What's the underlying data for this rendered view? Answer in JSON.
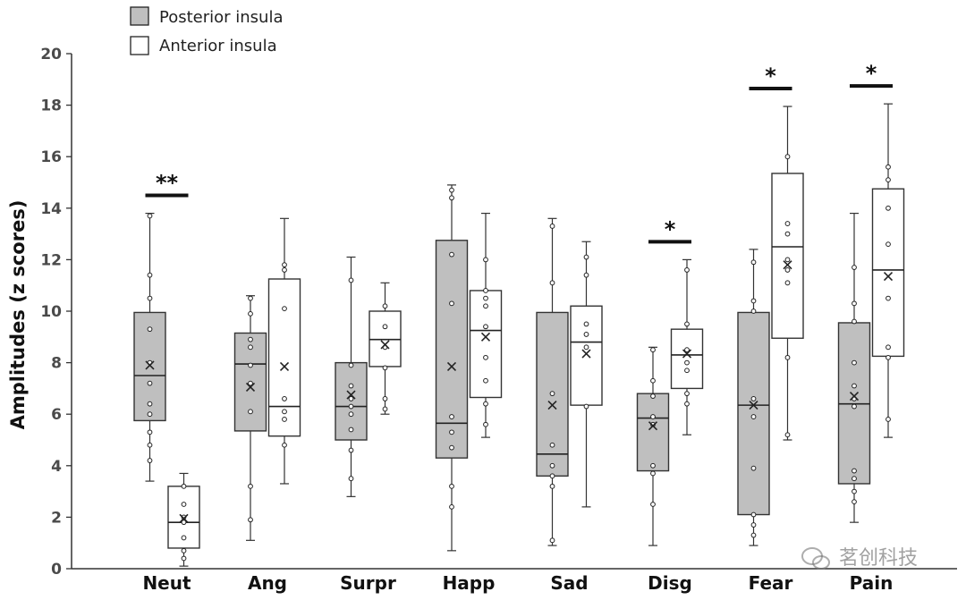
{
  "chart_data": {
    "type": "box",
    "ylabel": "Amplitudes (z scores)",
    "ylim": [
      0,
      20
    ],
    "yticks": [
      "0",
      "2",
      "4",
      "6",
      "8",
      "10",
      "12",
      "14",
      "16",
      "18",
      "20"
    ],
    "categories": [
      "Neut",
      "Ang",
      "Surpr",
      "Happ",
      "Sad",
      "Disg",
      "Fear",
      "Pain"
    ],
    "legend": [
      {
        "name": "Posterior insula",
        "color": "#bfbfbf"
      },
      {
        "name": "Anterior insula",
        "color": "#ffffff"
      }
    ],
    "series": [
      {
        "name": "Posterior insula",
        "color": "#bfbfbf",
        "boxes": [
          {
            "min": 3.4,
            "q1": 5.75,
            "median": 7.5,
            "q3": 9.95,
            "max": 13.8,
            "mean": 7.9,
            "points": [
              4.2,
              4.8,
              5.3,
              6.0,
              6.4,
              7.2,
              8.0,
              9.3,
              10.5,
              11.4,
              13.7
            ]
          },
          {
            "min": 1.1,
            "q1": 5.35,
            "median": 7.95,
            "q3": 9.15,
            "max": 10.6,
            "mean": 7.05,
            "points": [
              1.9,
              3.2,
              6.1,
              7.2,
              7.9,
              8.6,
              8.9,
              9.9,
              10.5
            ]
          },
          {
            "min": 2.8,
            "q1": 5.0,
            "median": 6.3,
            "q3": 8.0,
            "max": 12.1,
            "mean": 6.75,
            "points": [
              3.5,
              4.6,
              5.4,
              6.0,
              6.3,
              6.6,
              7.1,
              7.9,
              11.2
            ]
          },
          {
            "min": 0.7,
            "q1": 4.3,
            "median": 5.65,
            "q3": 12.75,
            "max": 14.9,
            "mean": 7.85,
            "points": [
              2.4,
              3.2,
              4.7,
              5.3,
              5.9,
              10.3,
              12.2,
              14.4,
              14.7
            ]
          },
          {
            "min": 0.9,
            "q1": 3.6,
            "median": 4.45,
            "q3": 9.95,
            "max": 13.6,
            "mean": 6.35,
            "points": [
              1.1,
              3.2,
              3.6,
              4.0,
              4.8,
              6.8,
              11.1,
              13.3
            ]
          },
          {
            "min": 0.9,
            "q1": 3.8,
            "median": 5.85,
            "q3": 6.8,
            "max": 8.6,
            "mean": 5.55,
            "points": [
              2.5,
              3.7,
              4.0,
              5.6,
              5.9,
              6.7,
              7.3,
              8.5
            ]
          },
          {
            "min": 0.9,
            "q1": 2.1,
            "median": 6.35,
            "q3": 9.95,
            "max": 12.4,
            "mean": 6.35,
            "points": [
              1.3,
              1.7,
              2.1,
              3.9,
              5.9,
              6.6,
              10.0,
              10.4,
              11.9
            ]
          },
          {
            "min": 1.8,
            "q1": 3.3,
            "median": 6.4,
            "q3": 9.55,
            "max": 13.8,
            "mean": 6.7,
            "points": [
              2.6,
              3.0,
              3.5,
              3.8,
              6.3,
              6.6,
              7.1,
              8.0,
              9.6,
              10.3,
              11.7
            ]
          }
        ]
      },
      {
        "name": "Anterior insula",
        "color": "#ffffff",
        "boxes": [
          {
            "min": 0.1,
            "q1": 0.8,
            "median": 1.8,
            "q3": 3.2,
            "max": 3.7,
            "mean": 1.95,
            "points": [
              0.4,
              0.7,
              1.2,
              1.8,
              2.0,
              2.5,
              3.2
            ]
          },
          {
            "min": 3.3,
            "q1": 5.15,
            "median": 6.3,
            "q3": 11.25,
            "max": 13.6,
            "mean": 7.85,
            "points": [
              4.8,
              5.8,
              6.1,
              6.6,
              10.1,
              11.6,
              11.8
            ]
          },
          {
            "min": 6.0,
            "q1": 7.85,
            "median": 8.9,
            "q3": 10.0,
            "max": 11.1,
            "mean": 8.7,
            "points": [
              6.2,
              6.6,
              7.8,
              8.6,
              9.4,
              10.2
            ]
          },
          {
            "min": 5.1,
            "q1": 6.65,
            "median": 9.25,
            "q3": 10.8,
            "max": 13.8,
            "mean": 9.0,
            "points": [
              5.6,
              6.4,
              7.3,
              8.2,
              9.4,
              10.2,
              10.5,
              10.8,
              12.0
            ]
          },
          {
            "min": 2.4,
            "q1": 6.35,
            "median": 8.8,
            "q3": 10.2,
            "max": 12.7,
            "mean": 8.35,
            "points": [
              6.3,
              8.6,
              9.1,
              9.5,
              11.4,
              12.1
            ]
          },
          {
            "min": 5.2,
            "q1": 7.0,
            "median": 8.3,
            "q3": 9.3,
            "max": 12.0,
            "mean": 8.35,
            "points": [
              6.4,
              6.8,
              7.7,
              8.0,
              8.5,
              9.5,
              11.6
            ]
          },
          {
            "min": 5.0,
            "q1": 8.95,
            "median": 12.5,
            "q3": 15.35,
            "max": 17.95,
            "mean": 11.8,
            "points": [
              5.2,
              8.2,
              11.1,
              11.6,
              12.0,
              13.0,
              13.4,
              16.0
            ]
          },
          {
            "min": 5.1,
            "q1": 8.25,
            "median": 11.6,
            "q3": 14.75,
            "max": 18.05,
            "mean": 11.35,
            "points": [
              5.8,
              8.2,
              8.6,
              10.5,
              12.6,
              14.0,
              15.1,
              15.6
            ]
          }
        ]
      }
    ],
    "annotations": [
      {
        "category": "Neut",
        "text": "**"
      },
      {
        "category": "Disg",
        "text": "*"
      },
      {
        "category": "Fear",
        "text": "*"
      },
      {
        "category": "Pain",
        "text": "*"
      }
    ]
  },
  "watermark": "茗创科技",
  "watermark_icon": "wechat-icon"
}
